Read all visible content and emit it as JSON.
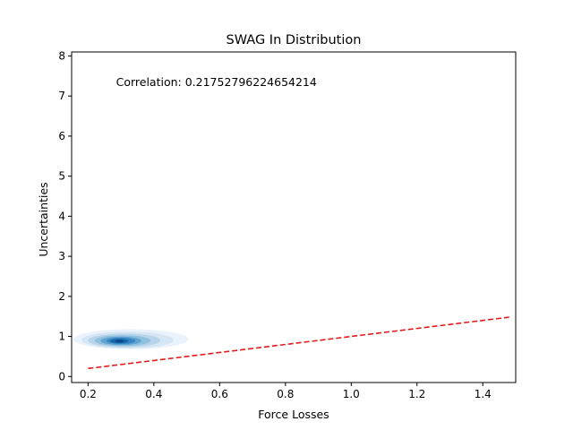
{
  "chart_data": {
    "type": "density",
    "title": "SWAG In Distribution",
    "xlabel": "Force Losses",
    "ylabel": "Uncertainties",
    "xlim": [
      0.15,
      1.5
    ],
    "ylim": [
      -0.15,
      8.1
    ],
    "xticks": [
      0.2,
      0.4,
      0.6,
      0.8,
      1.0,
      1.2,
      1.4
    ],
    "xtick_labels": [
      "0.2",
      "0.4",
      "0.6",
      "0.8",
      "1.0",
      "1.2",
      "1.4"
    ],
    "yticks": [
      0,
      1,
      2,
      3,
      4,
      5,
      6,
      7,
      8
    ],
    "ytick_labels": [
      "0",
      "1",
      "2",
      "3",
      "4",
      "5",
      "6",
      "7",
      "8"
    ],
    "grid": false,
    "annotation": {
      "text": "Correlation: 0.21752796224654214",
      "x": 0.285,
      "y": 7.25
    },
    "reference_line": {
      "x": [
        0.2,
        1.48
      ],
      "y": [
        0.2,
        1.48
      ],
      "style": "dashed",
      "color": "#e41a1c"
    },
    "density": {
      "colormap": "Blues",
      "levels": [
        {
          "cx": 0.33,
          "cy": 0.93,
          "rx": 0.175,
          "ry": 0.25,
          "color": "#eaf3fb"
        },
        {
          "cx": 0.32,
          "cy": 0.91,
          "rx": 0.14,
          "ry": 0.21,
          "color": "#d6e6f4"
        },
        {
          "cx": 0.31,
          "cy": 0.9,
          "rx": 0.11,
          "ry": 0.17,
          "color": "#b7d4ea"
        },
        {
          "cx": 0.305,
          "cy": 0.895,
          "rx": 0.085,
          "ry": 0.135,
          "color": "#8fc1de"
        },
        {
          "cx": 0.3,
          "cy": 0.89,
          "rx": 0.062,
          "ry": 0.105,
          "color": "#5fa3d1"
        },
        {
          "cx": 0.3,
          "cy": 0.89,
          "rx": 0.044,
          "ry": 0.08,
          "color": "#3586c0"
        },
        {
          "cx": 0.295,
          "cy": 0.885,
          "rx": 0.028,
          "ry": 0.055,
          "color": "#1765ab"
        },
        {
          "cx": 0.295,
          "cy": 0.885,
          "rx": 0.014,
          "ry": 0.032,
          "color": "#08468a"
        }
      ]
    }
  }
}
